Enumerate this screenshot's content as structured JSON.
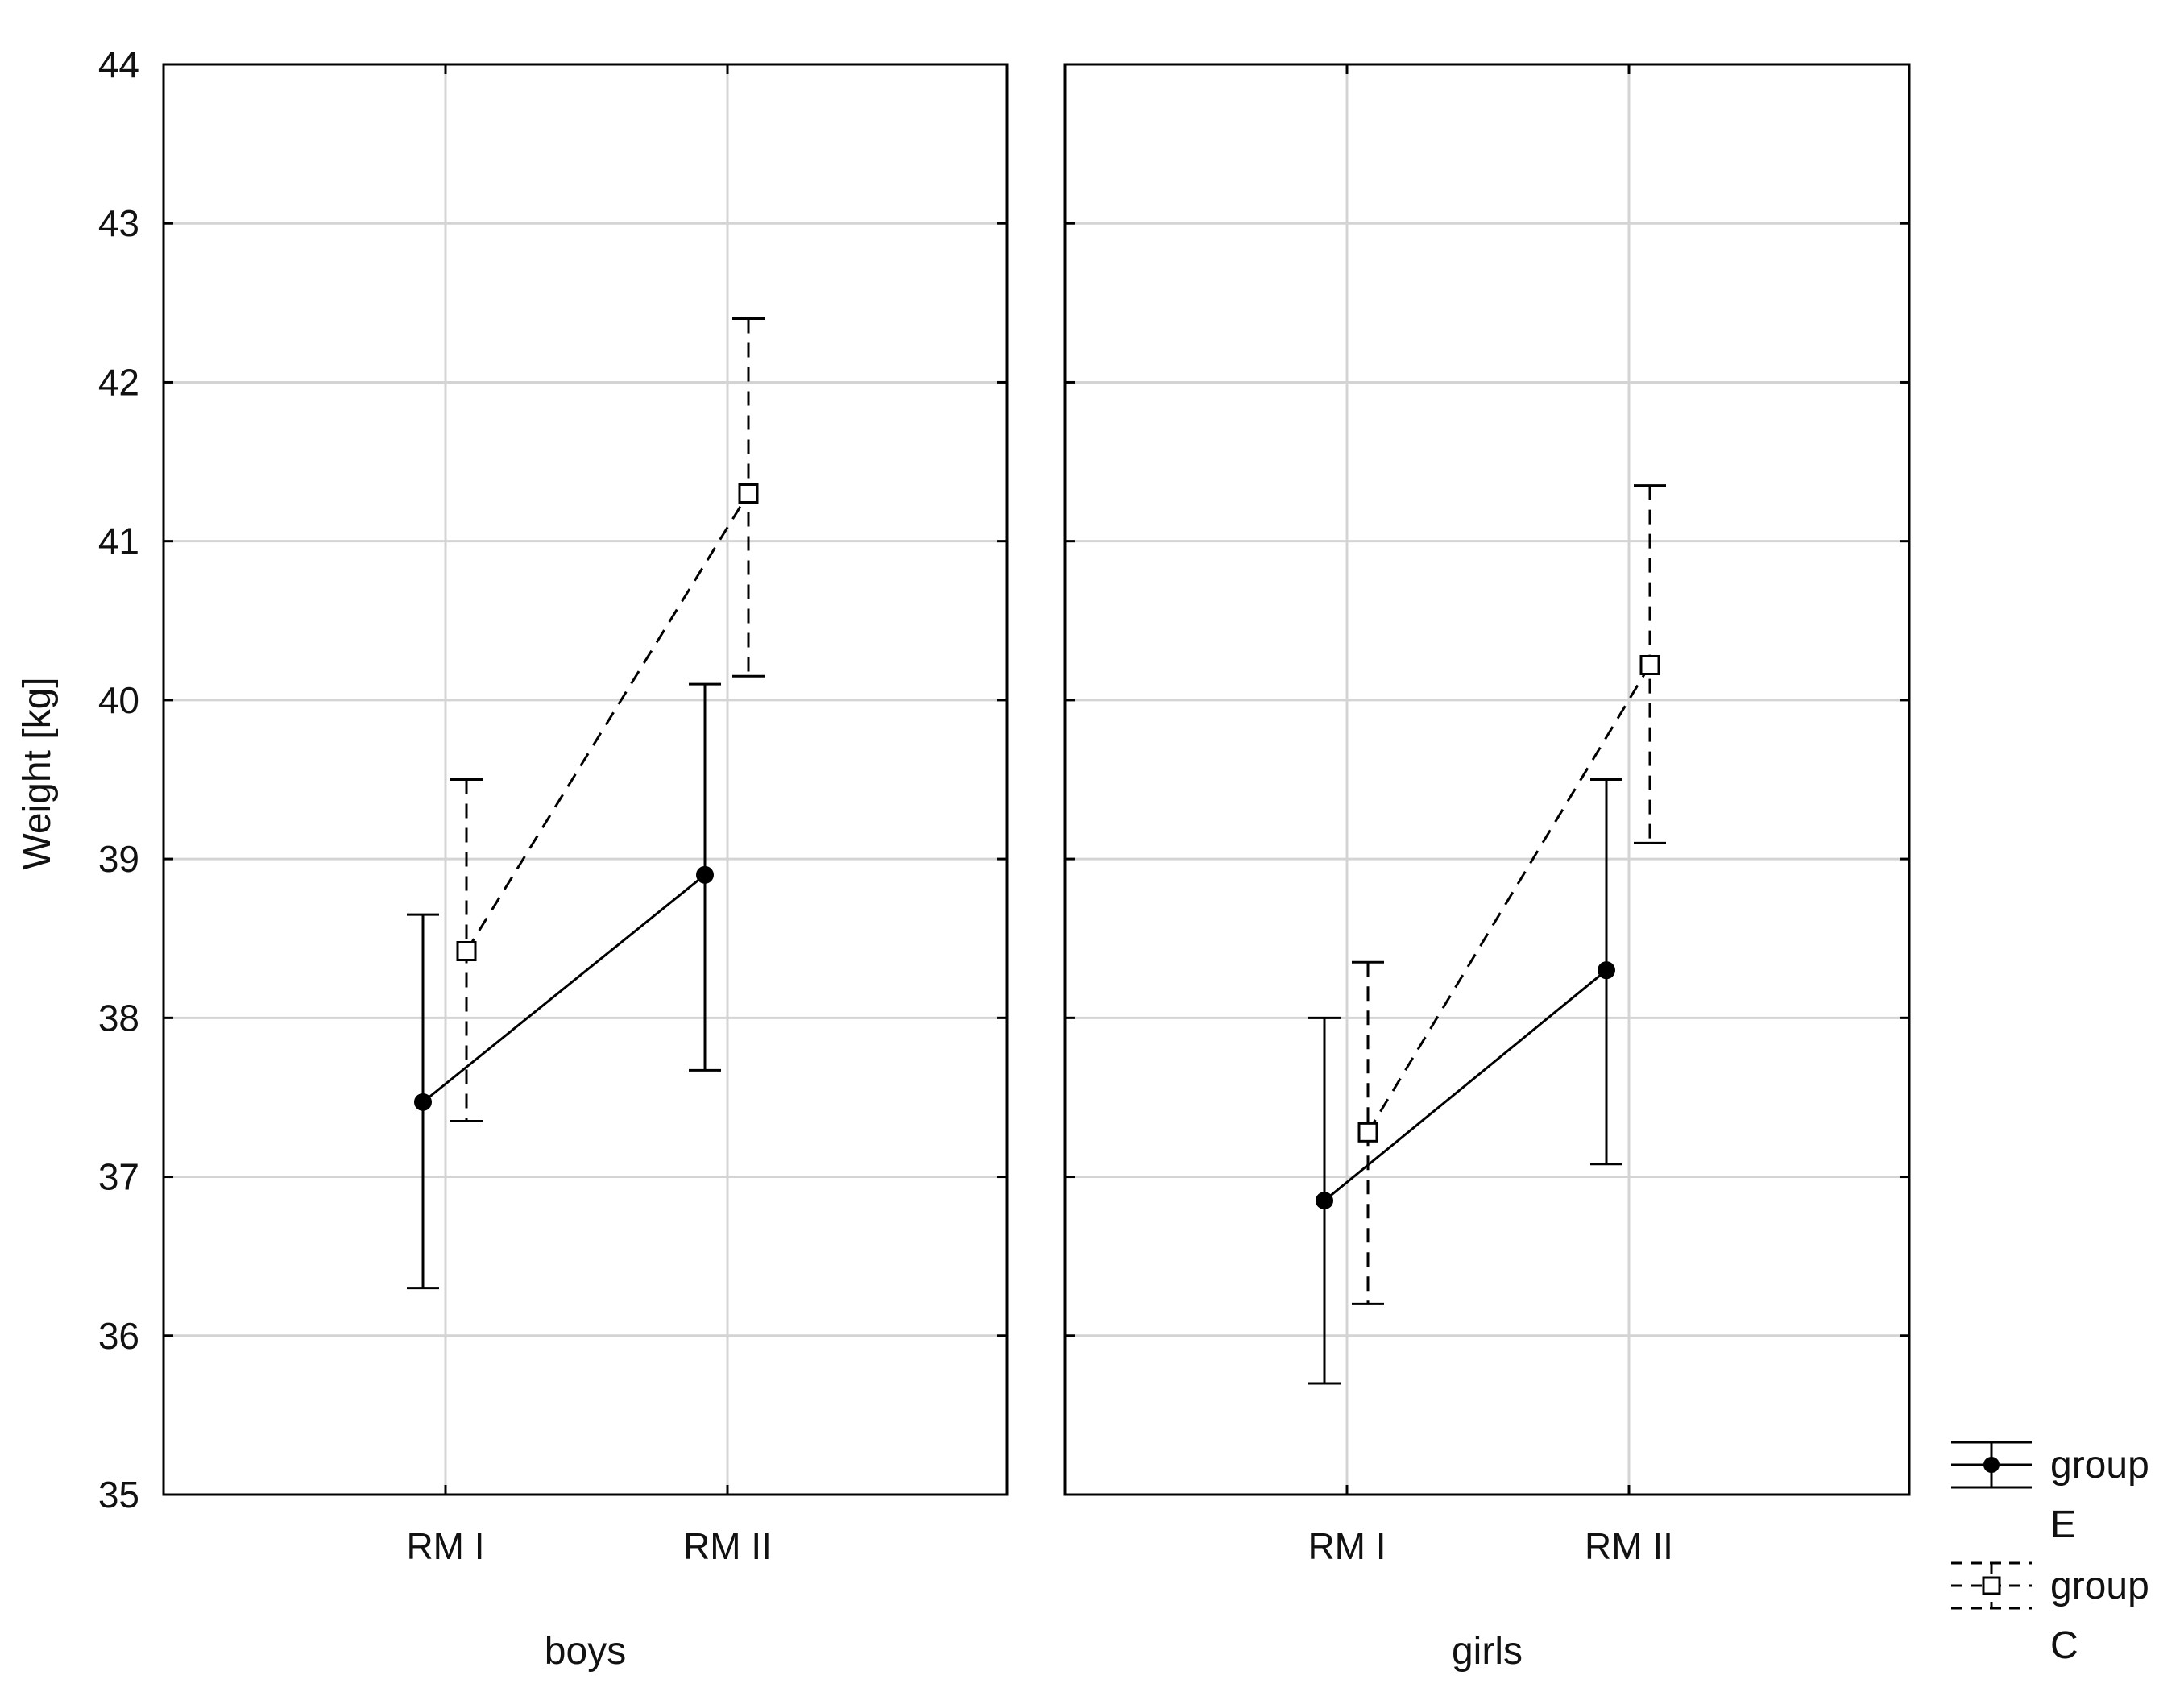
{
  "chart_data": {
    "type": "line",
    "ylabel": "Weight [kg]",
    "ylim": [
      35,
      44
    ],
    "yticks": [
      35,
      36,
      37,
      38,
      39,
      40,
      41,
      42,
      43,
      44
    ],
    "categories": [
      "RM I",
      "RM II"
    ],
    "grid": true,
    "legend_position": "bottom-right",
    "panels": [
      {
        "label": "boys",
        "series": [
          {
            "name": "group E",
            "style": "solid",
            "marker": "filled-circle",
            "values": [
              37.47,
              38.9
            ],
            "lower": [
              36.3,
              37.67
            ],
            "upper": [
              38.65,
              40.1
            ]
          },
          {
            "name": "group C",
            "style": "dashed",
            "marker": "open-square",
            "values": [
              38.42,
              41.3
            ],
            "lower": [
              37.35,
              40.15
            ],
            "upper": [
              39.5,
              42.4
            ]
          }
        ]
      },
      {
        "label": "girls",
        "series": [
          {
            "name": "group E",
            "style": "solid",
            "marker": "filled-circle",
            "values": [
              36.85,
              38.3
            ],
            "lower": [
              35.7,
              37.08
            ],
            "upper": [
              38.0,
              39.5
            ]
          },
          {
            "name": "group C",
            "style": "dashed",
            "marker": "open-square",
            "values": [
              37.28,
              40.22
            ],
            "lower": [
              36.2,
              39.1
            ],
            "upper": [
              38.35,
              41.35
            ]
          }
        ]
      }
    ],
    "legend": [
      {
        "line1": "group",
        "line2": "E",
        "style": "solid",
        "marker": "filled-circle"
      },
      {
        "line1": "group",
        "line2": "C",
        "style": "dashed",
        "marker": "open-square"
      }
    ]
  }
}
